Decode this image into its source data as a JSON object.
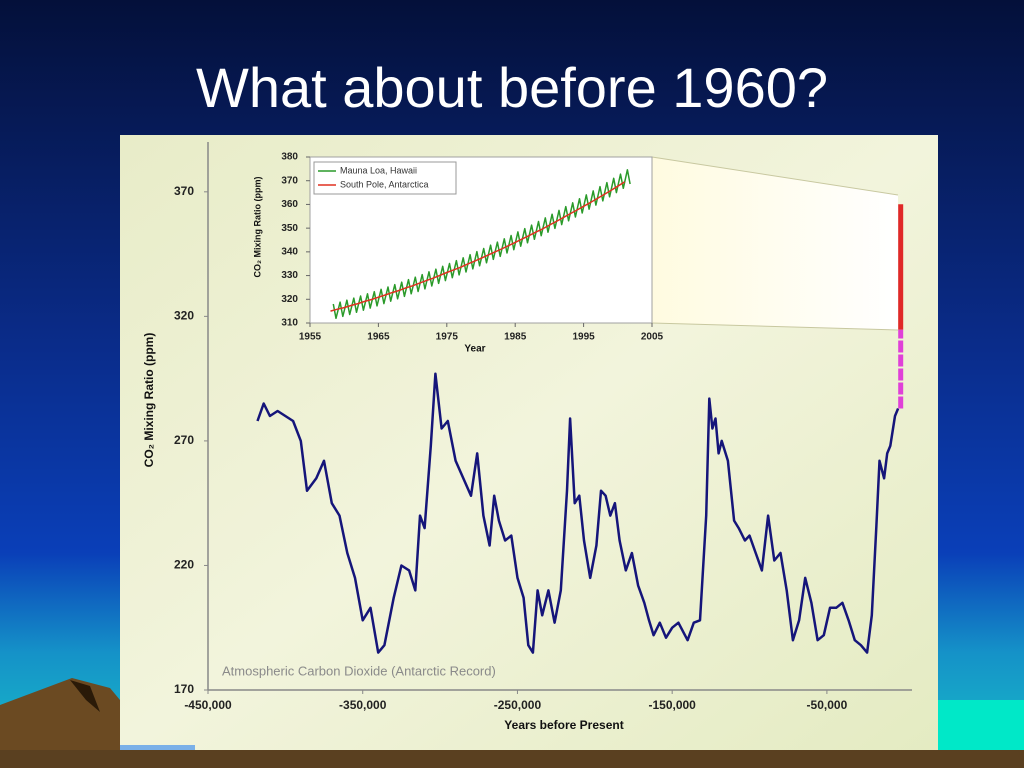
{
  "slide_title": "What about before 1960?",
  "chart_data": [
    {
      "type": "line",
      "xlabel": "Years before Present",
      "ylabel": "CO₂ Mixing Ratio (ppm)",
      "annotation": "Atmospheric Carbon Dioxide (Antarctic Record)",
      "xlim": [
        -450000,
        5000
      ],
      "ylim": [
        170,
        390
      ],
      "xticks": [
        {
          "value": -450000,
          "label": "-450,000"
        },
        {
          "value": -350000,
          "label": "-350,000"
        },
        {
          "value": -250000,
          "label": "-250,000"
        },
        {
          "value": -150000,
          "label": "-150,000"
        },
        {
          "value": -50000,
          "label": "-50,000"
        }
      ],
      "yticks": [
        170,
        220,
        270,
        320,
        370
      ],
      "series": [
        {
          "color": "#15157a",
          "x": [
            -418000,
            -414000,
            -410000,
            -405000,
            -395000,
            -390000,
            -386000,
            -380000,
            -375000,
            -370000,
            -365000,
            -360000,
            -355000,
            -350000,
            -345000,
            -340000,
            -336000,
            -330000,
            -325000,
            -320000,
            -316000,
            -313000,
            -310000,
            -306000,
            -303000,
            -299000,
            -295000,
            -290000,
            -285000,
            -280000,
            -276000,
            -272000,
            -268000,
            -265000,
            -262000,
            -258000,
            -254000,
            -250000,
            -246000,
            -243000,
            -240000,
            -237000,
            -234000,
            -230000,
            -226000,
            -222000,
            -218000,
            -216000,
            -213000,
            -210000,
            -207000,
            -203000,
            -199000,
            -196000,
            -193000,
            -190000,
            -187000,
            -184000,
            -180000,
            -176000,
            -172000,
            -168000,
            -165000,
            -162000,
            -158000,
            -154000,
            -150000,
            -146000,
            -140000,
            -136000,
            -132000,
            -128000,
            -126000,
            -124000,
            -122000,
            -120000,
            -118000,
            -114000,
            -110000,
            -107000,
            -103000,
            -100000,
            -96000,
            -92000,
            -88000,
            -84000,
            -80000,
            -76000,
            -72000,
            -68000,
            -64000,
            -60000,
            -56000,
            -52000,
            -48000,
            -44000,
            -40000,
            -36000,
            -32000,
            -28000,
            -24000,
            -21000,
            -18000,
            -16000,
            -13000,
            -11000,
            -9000,
            -6000,
            -4000
          ],
          "values": [
            278,
            285,
            280,
            282,
            278,
            270,
            250,
            255,
            262,
            245,
            240,
            225,
            215,
            198,
            203,
            185,
            188,
            207,
            220,
            218,
            210,
            240,
            235,
            268,
            297,
            275,
            278,
            262,
            255,
            248,
            265,
            240,
            228,
            248,
            238,
            230,
            232,
            215,
            207,
            188,
            185,
            210,
            200,
            210,
            197,
            210,
            250,
            279,
            245,
            248,
            230,
            215,
            228,
            250,
            248,
            240,
            245,
            230,
            218,
            225,
            212,
            205,
            198,
            192,
            197,
            191,
            195,
            197,
            190,
            197,
            198,
            240,
            287,
            275,
            279,
            265,
            270,
            262,
            238,
            235,
            230,
            232,
            225,
            218,
            240,
            222,
            225,
            210,
            190,
            198,
            215,
            205,
            190,
            192,
            203,
            203,
            205,
            198,
            190,
            188,
            185,
            200,
            236,
            262,
            255,
            265,
            268,
            280,
            283
          ]
        },
        {
          "color": "#e02828",
          "x": [
            -2300,
            -2300
          ],
          "values": [
            314.6,
            365
          ]
        },
        {
          "color": "#e040d8",
          "x": [
            -2300,
            -2300
          ],
          "values": [
            283,
            314.6
          ]
        }
      ]
    },
    {
      "type": "line",
      "xlabel": "Year",
      "ylabel": "CO₂ Mixing Ratio (ppm)",
      "xlim": [
        1955,
        2005
      ],
      "ylim": [
        310,
        380
      ],
      "xticks": [
        1955,
        1965,
        1975,
        1985,
        1995,
        2005
      ],
      "yticks": [
        310,
        320,
        330,
        340,
        350,
        360,
        370,
        380
      ],
      "legend": "upper left",
      "series": [
        {
          "name": "Mauna Loa, Hawaii",
          "color": "#2a9a2a",
          "x": [
            1958.4,
            1958.8,
            1959.4,
            1959.8,
            1960.4,
            1960.8,
            1961.4,
            1961.8,
            1962.4,
            1962.8,
            1963.4,
            1963.8,
            1964.4,
            1964.8,
            1965.4,
            1965.8,
            1966.4,
            1966.8,
            1967.4,
            1967.8,
            1968.4,
            1968.8,
            1969.4,
            1969.8,
            1970.4,
            1970.8,
            1971.4,
            1971.8,
            1972.4,
            1972.8,
            1973.4,
            1973.8,
            1974.4,
            1974.8,
            1975.4,
            1975.8,
            1976.4,
            1976.8,
            1977.4,
            1977.8,
            1978.4,
            1978.8,
            1979.4,
            1979.8,
            1980.4,
            1980.8,
            1981.4,
            1981.8,
            1982.4,
            1982.8,
            1983.4,
            1983.8,
            1984.4,
            1984.8,
            1985.4,
            1985.8,
            1986.4,
            1986.8,
            1987.4,
            1987.8,
            1988.4,
            1988.8,
            1989.4,
            1989.8,
            1990.4,
            1990.8,
            1991.4,
            1991.8,
            1992.4,
            1992.8,
            1993.4,
            1993.8,
            1994.4,
            1994.8,
            1995.4,
            1995.8,
            1996.4,
            1996.8,
            1997.4,
            1997.8,
            1998.4,
            1998.8,
            1999.4,
            1999.8,
            2000.4,
            2000.8,
            2001.4,
            2001.8
          ],
          "values": [
            318.0,
            312.0,
            318.8,
            312.8,
            319.6,
            313.6,
            320.5,
            314.5,
            321.4,
            315.4,
            322.3,
            316.3,
            323.2,
            317.2,
            324.2,
            318.2,
            325.2,
            319.2,
            326.2,
            320.2,
            327.2,
            321.2,
            328.3,
            322.3,
            329.3,
            323.3,
            330.4,
            324.4,
            331.6,
            325.6,
            332.7,
            326.7,
            333.9,
            327.9,
            335.1,
            329.1,
            336.3,
            330.3,
            337.5,
            331.5,
            338.8,
            332.8,
            340.1,
            334.1,
            341.4,
            335.4,
            342.8,
            336.8,
            344.1,
            338.1,
            345.5,
            339.5,
            346.9,
            340.9,
            348.4,
            342.4,
            349.8,
            343.8,
            351.3,
            345.3,
            352.8,
            346.8,
            354.3,
            348.3,
            355.9,
            349.9,
            357.5,
            351.5,
            359.1,
            353.1,
            360.7,
            354.7,
            362.4,
            356.4,
            364.0,
            358.0,
            365.7,
            359.7,
            367.5,
            361.5,
            369.2,
            363.2,
            371.0,
            365.0,
            372.8,
            366.8,
            374.6,
            368.6
          ]
        },
        {
          "name": "South Pole, Antarctica",
          "color": "#e03020",
          "x": [
            1958,
            1959,
            1960,
            1961,
            1962,
            1963,
            1964,
            1965,
            1966,
            1967,
            1968,
            1969,
            1970,
            1971,
            1972,
            1973,
            1974,
            1975,
            1976,
            1977,
            1978,
            1979,
            1980,
            1981,
            1982,
            1983,
            1984,
            1985,
            1986,
            1987,
            1988,
            1989,
            1990,
            1991,
            1992,
            1993,
            1994,
            1995,
            1996,
            1997,
            1998,
            1999,
            2000,
            2001
          ],
          "values": [
            315.0,
            315.8,
            316.5,
            317.4,
            318.2,
            319.1,
            319.9,
            320.9,
            321.8,
            322.8,
            323.7,
            324.8,
            325.7,
            326.8,
            327.9,
            328.9,
            330.1,
            331.3,
            332.4,
            333.5,
            334.8,
            336.0,
            337.3,
            338.6,
            339.9,
            341.2,
            342.6,
            344.0,
            345.4,
            346.8,
            348.3,
            349.7,
            351.3,
            352.8,
            354.4,
            356.0,
            357.6,
            359.2,
            360.8,
            362.5,
            364.2,
            365.9,
            367.7,
            369.5
          ]
        }
      ]
    }
  ]
}
